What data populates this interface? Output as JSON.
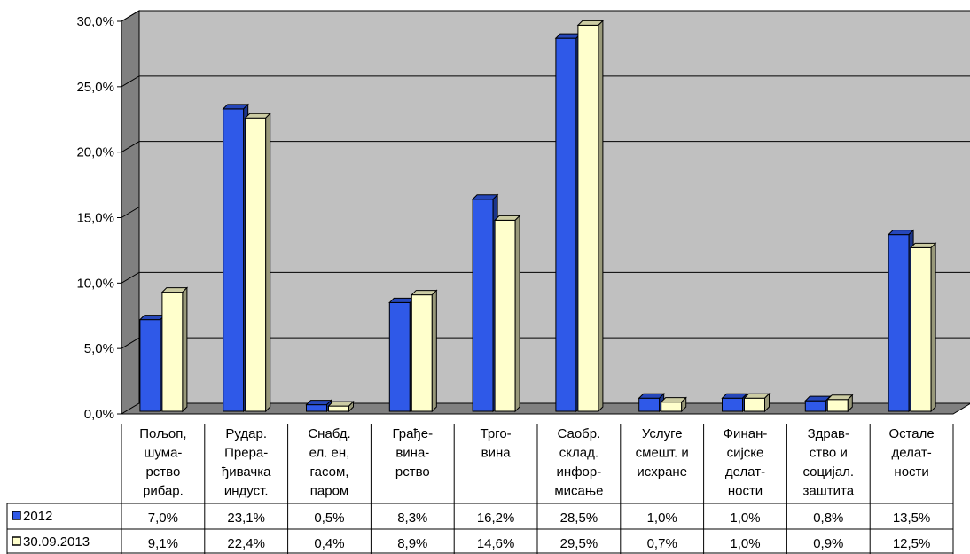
{
  "chart_data": {
    "type": "bar",
    "categories": [
      [
        "Пољоп,",
        "шума-",
        "рство",
        "рибар."
      ],
      [
        "Рудар.",
        "Прера-",
        "ђивачка",
        "индуст."
      ],
      [
        "Снабд.",
        "ел. ен,",
        "гасом,",
        "паром"
      ],
      [
        "Грађе-",
        "вина-",
        "рство"
      ],
      [
        "Трго-",
        "вина"
      ],
      [
        "Саобр.",
        "склад.",
        "инфор-",
        "мисање"
      ],
      [
        "Услуге",
        "смешт. и",
        "исхране"
      ],
      [
        "Финан-",
        "сијске",
        "делат-",
        "ности"
      ],
      [
        "Здрав-",
        "ство и",
        "социјал.",
        "заштита"
      ],
      [
        "Остале",
        "делат-",
        "ности"
      ]
    ],
    "series": [
      {
        "name": "2012",
        "color": "#2f59e8",
        "values": [
          7.0,
          23.1,
          0.5,
          8.3,
          16.2,
          28.5,
          1.0,
          1.0,
          0.8,
          13.5
        ],
        "labels": [
          "7,0%",
          "23,1%",
          "0,5%",
          "8,3%",
          "16,2%",
          "28,5%",
          "1,0%",
          "1,0%",
          "0,8%",
          "13,5%"
        ]
      },
      {
        "name": "30.09.2013",
        "color": "#ffffcc",
        "values": [
          9.1,
          22.4,
          0.4,
          8.9,
          14.6,
          29.5,
          0.7,
          1.0,
          0.9,
          12.5
        ],
        "labels": [
          "9,1%",
          "22,4%",
          "0,4%",
          "8,9%",
          "14,6%",
          "29,5%",
          "0,7%",
          "1,0%",
          "0,9%",
          "12,5%"
        ]
      }
    ],
    "y_ticks": [
      "0,0%",
      "5,0%",
      "10,0%",
      "15,0%",
      "20,0%",
      "25,0%",
      "30,0%"
    ],
    "ylim": [
      0,
      30
    ],
    "grid": true,
    "legend": "data-table-below",
    "plot_background": "#c0c0c0"
  }
}
